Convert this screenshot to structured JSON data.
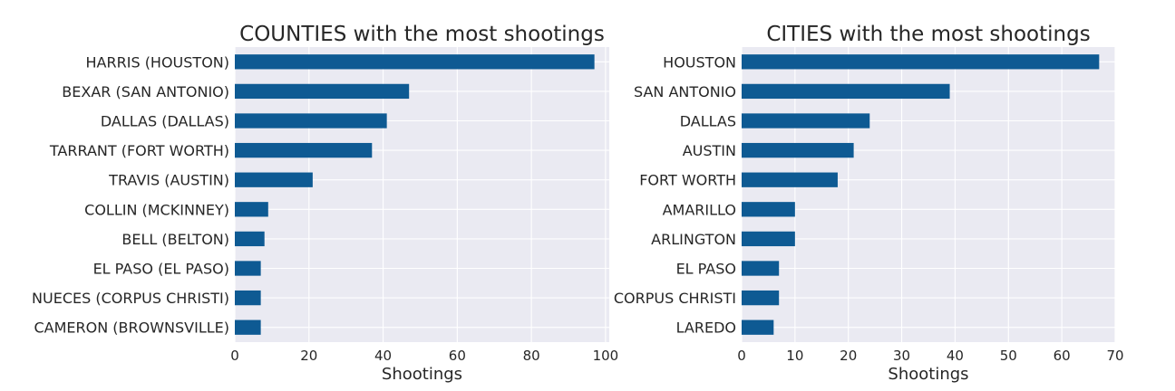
{
  "style": {
    "bar_color": "#0e5a93",
    "plot_background": "#eaeaf2",
    "grid_color": "#ffffff",
    "text_color": "#262626"
  },
  "chart_data": [
    {
      "type": "bar",
      "orientation": "horizontal",
      "title": "COUNTIES with the most shootings",
      "xlabel": "Shootings",
      "ylabel": "",
      "categories": [
        "HARRIS (HOUSTON)",
        "BEXAR (SAN ANTONIO)",
        "DALLAS (DALLAS)",
        "TARRANT (FORT WORTH)",
        "TRAVIS (AUSTIN)",
        "COLLIN (MCKINNEY)",
        "BELL (BELTON)",
        "EL PASO (EL PASO)",
        "NUECES (CORPUS CHRISTI)",
        "CAMERON (BROWNSVILLE)"
      ],
      "values": [
        97,
        47,
        41,
        37,
        21,
        9,
        8,
        7,
        7,
        7
      ],
      "xlim": [
        0,
        101
      ],
      "xticks": [
        0,
        20,
        40,
        60,
        80,
        100
      ],
      "grid": true,
      "legend": "none"
    },
    {
      "type": "bar",
      "orientation": "horizontal",
      "title": "CITIES with the most shootings",
      "xlabel": "Shootings",
      "ylabel": "",
      "categories": [
        "HOUSTON",
        "SAN ANTONIO",
        "DALLAS",
        "AUSTIN",
        "FORT WORTH",
        "AMARILLO",
        "ARLINGTON",
        "EL PASO",
        "CORPUS CHRISTI",
        "LAREDO"
      ],
      "values": [
        67,
        39,
        24,
        21,
        18,
        10,
        10,
        7,
        7,
        6
      ],
      "xlim": [
        0,
        70
      ],
      "xticks": [
        0,
        10,
        20,
        30,
        40,
        50,
        60,
        70
      ],
      "grid": true,
      "legend": "none"
    }
  ]
}
